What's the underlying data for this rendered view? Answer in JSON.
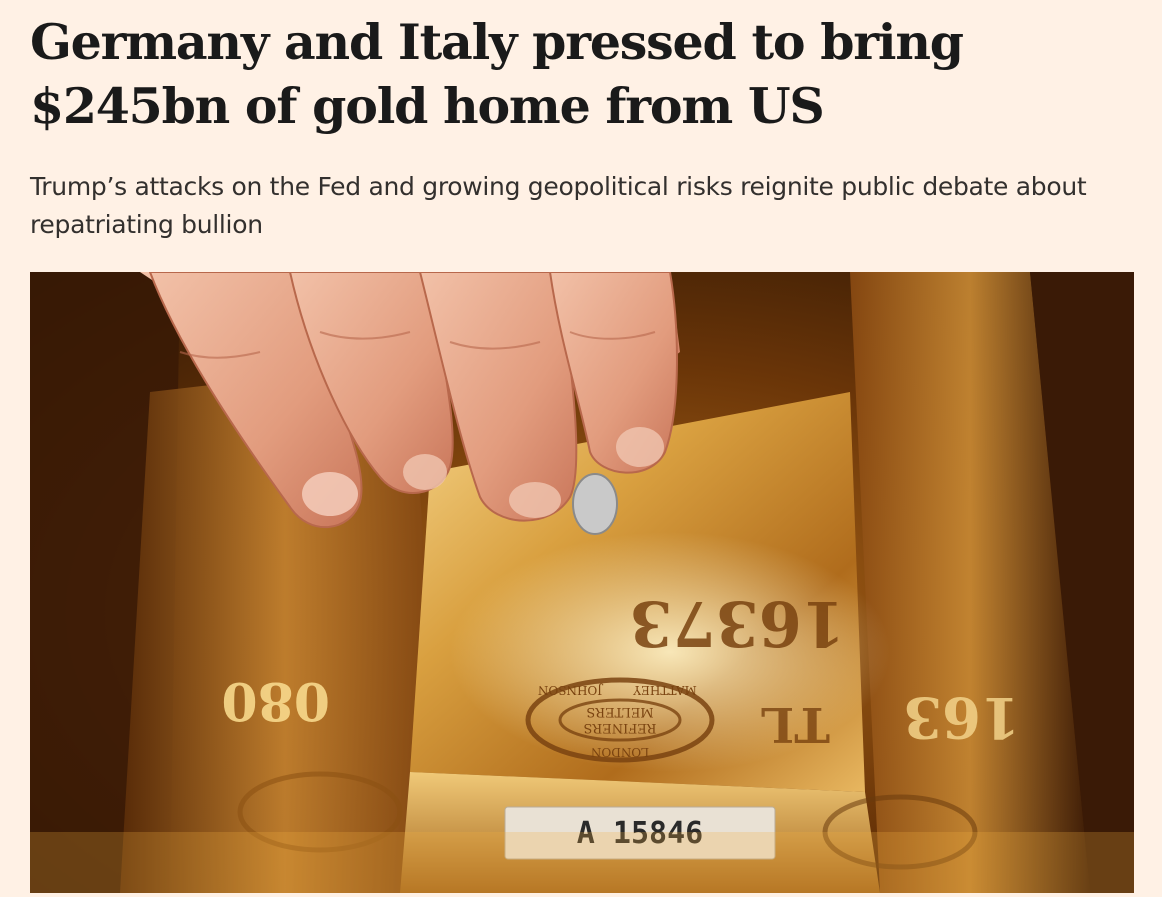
{
  "article": {
    "headline": "Germany and Italy pressed to bring $245bn of gold home from US",
    "standfirst": "Trump’s attacks on the Fed and growing geopolitical risks reignite public debate about repatriating bullion"
  },
  "hero_image": {
    "center_bar_number": "16373",
    "left_bar_number": "080",
    "right_bar_number": "163",
    "center_bar_letters": "TL",
    "stamp_line_1": "JOHNSON",
    "stamp_line_2": "MATTHEY",
    "stamp_line_3": "REFINERS",
    "stamp_line_4": "MELTERS",
    "stamp_line_5": "LONDON",
    "label_text": "A 15846"
  },
  "colors": {
    "background": "#fff1e5",
    "headline": "#1a1a1a",
    "standfirst": "#33302e",
    "gold_light": "#f4c86a",
    "gold_mid": "#c98a2a",
    "gold_dark": "#5a2c08"
  }
}
